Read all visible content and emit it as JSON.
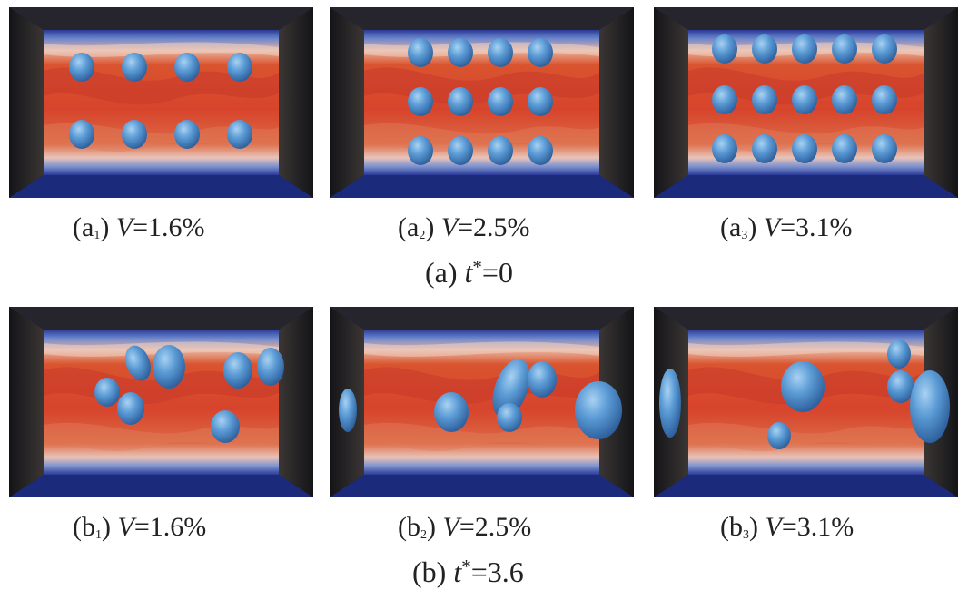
{
  "figure": {
    "rows": [
      {
        "label": "(a)",
        "variable": "t",
        "superscript": "*",
        "equals": "=0",
        "panels": [
          {
            "prefix": "(a",
            "index": "1",
            "suffix": ")",
            "variable": "V",
            "value": "=1.6%"
          },
          {
            "prefix": "(a",
            "index": "2",
            "suffix": ")",
            "variable": "V",
            "value": "=2.5%"
          },
          {
            "prefix": "(a",
            "index": "3",
            "suffix": ")",
            "variable": "V",
            "value": "=3.1%"
          }
        ]
      },
      {
        "label": "(b)",
        "variable": "t",
        "superscript": "*",
        "equals": "=3.6",
        "panels": [
          {
            "prefix": "(b",
            "index": "1",
            "suffix": ")",
            "variable": "V",
            "value": "=1.6%"
          },
          {
            "prefix": "(b",
            "index": "2",
            "suffix": ")",
            "variable": "V",
            "value": "=2.5%"
          },
          {
            "prefix": "(b",
            "index": "3",
            "suffix": ")",
            "variable": "V",
            "value": "=3.1%"
          }
        ]
      }
    ],
    "colors": {
      "frame": "#1f1f2a",
      "flow_hot": "#d7442c",
      "flow_warm": "#e58a62",
      "flow_cold": "#2c3c9c",
      "bubble": "#5c9cd6"
    }
  }
}
